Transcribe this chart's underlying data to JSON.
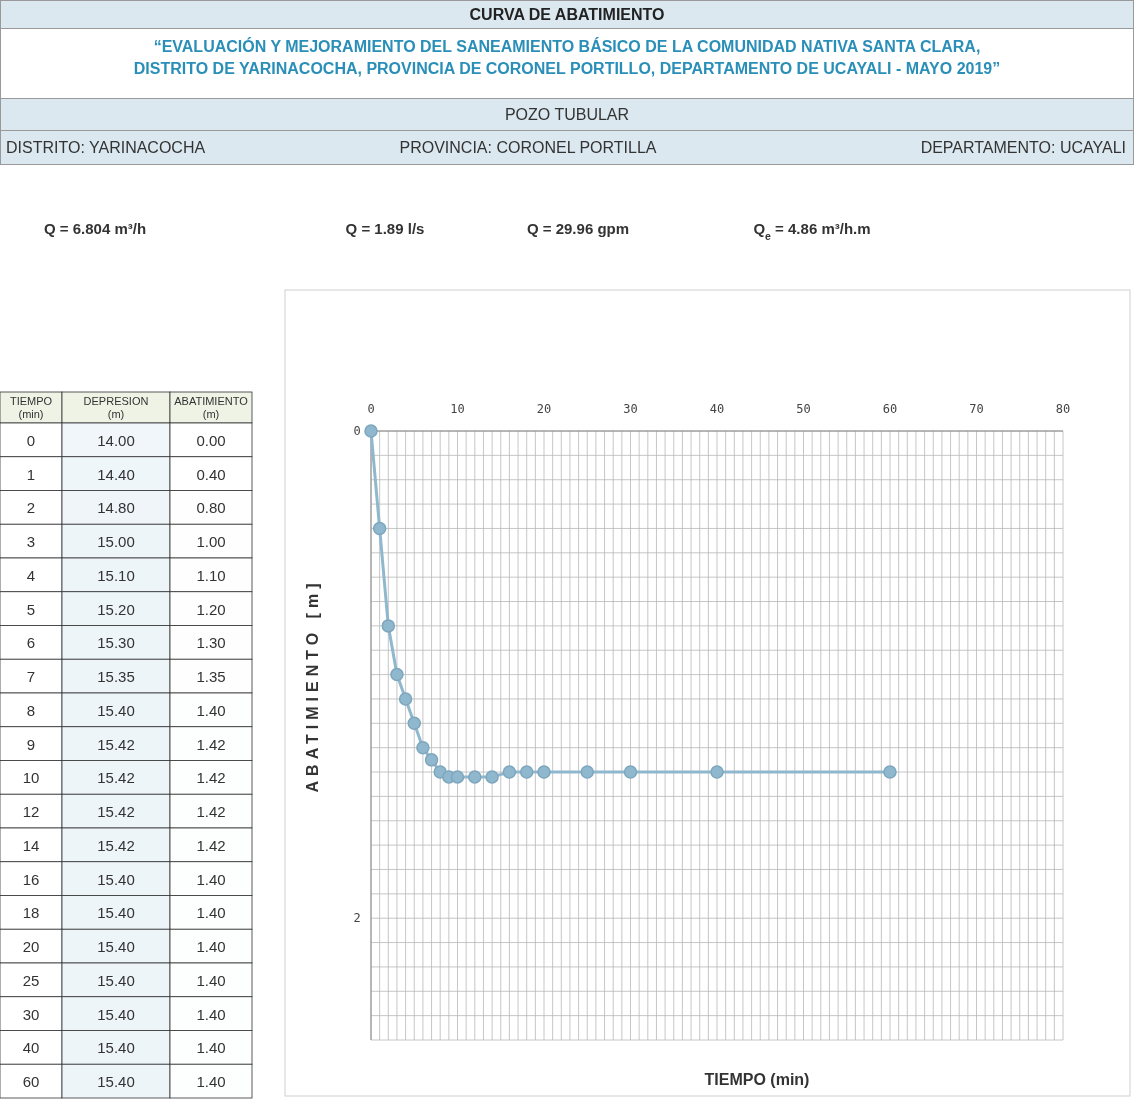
{
  "chart_data": [
    {
      "type": "heatmap",
      "ylabel": "TIEMPO (min)",
      "categories": [
        "DEPRESION (m)",
        "ABATIMIENTO (m)"
      ],
      "y_categories": [
        "0",
        "1",
        "2",
        "3",
        "4",
        "5",
        "6",
        "7",
        "8",
        "9",
        "10",
        "12",
        "14",
        "16",
        "18",
        "20",
        "25",
        "30",
        "40",
        "60"
      ],
      "cells": [
        [
          14.0,
          0.0
        ],
        [
          14.4,
          0.4
        ],
        [
          14.8,
          0.8
        ],
        [
          15.0,
          1.0
        ],
        [
          15.1,
          1.1
        ],
        [
          15.2,
          1.2
        ],
        [
          15.3,
          1.3
        ],
        [
          15.35,
          1.35
        ],
        [
          15.4,
          1.4
        ],
        [
          15.42,
          1.42
        ],
        [
          15.42,
          1.42
        ],
        [
          15.42,
          1.42
        ],
        [
          15.42,
          1.42
        ],
        [
          15.4,
          1.4
        ],
        [
          15.4,
          1.4
        ],
        [
          15.4,
          1.4
        ],
        [
          15.4,
          1.4
        ],
        [
          15.4,
          1.4
        ],
        [
          15.4,
          1.4
        ],
        [
          15.4,
          1.4
        ]
      ],
      "cell_labels": [
        [
          "14.00",
          "0.00"
        ],
        [
          "14.40",
          "0.40"
        ],
        [
          "14.80",
          "0.80"
        ],
        [
          "15.00",
          "1.00"
        ],
        [
          "15.10",
          "1.10"
        ],
        [
          "15.20",
          "1.20"
        ],
        [
          "15.30",
          "1.30"
        ],
        [
          "15.35",
          "1.35"
        ],
        [
          "15.40",
          "1.40"
        ],
        [
          "15.42",
          "1.42"
        ],
        [
          "15.42",
          "1.42"
        ],
        [
          "15.42",
          "1.42"
        ],
        [
          "15.42",
          "1.42"
        ],
        [
          "15.40",
          "1.40"
        ],
        [
          "15.40",
          "1.40"
        ],
        [
          "15.40",
          "1.40"
        ],
        [
          "15.40",
          "1.40"
        ],
        [
          "15.40",
          "1.40"
        ],
        [
          "15.40",
          "1.40"
        ],
        [
          "15.40",
          "1.40"
        ]
      ]
    },
    {
      "type": "line",
      "title": "CURVA DE ABATIMIENTO",
      "subtitle": "“EVALUACIÓN Y MEJORAMIENTO DEL SANEAMIENTO BÁSICO DE LA COMUNIDAD NATIVA SANTA CLARA, DISTRITO DE YARINACOCHA, PROVINCIA DE CORONEL PORTILLO, DEPARTAMENTO DE UCAYALI - MAYO 2019”",
      "annotations": [
        "POZO TUBULAR",
        "DISTRITO: YARINACOCHA",
        "PROVINCIA: CORONEL PORTILLA",
        "DEPARTAMENTO: UCAYALI",
        "Q =  6.804 m³/h",
        "Q = 1.89 l/s",
        "Q = 29.96 gpm",
        "Q$_{e}$ =  4.86 m³/h.m"
      ],
      "xlabel": "TIEMPO (min)",
      "ylabel": "ABATIMIENTO [m]",
      "x": [
        0,
        1,
        2,
        3,
        4,
        5,
        6,
        7,
        8,
        9,
        10,
        12,
        14,
        16,
        18,
        20,
        25,
        30,
        40,
        60
      ],
      "series": [
        {
          "color": "#8fb8cf",
          "values": [
            0,
            0.4,
            0.8,
            1.0,
            1.1,
            1.2,
            1.3,
            1.35,
            1.4,
            1.42,
            1.42,
            1.42,
            1.42,
            1.4,
            1.4,
            1.4,
            1.4,
            1.4,
            1.4,
            1.4
          ]
        }
      ],
      "xlim": [
        0,
        80
      ],
      "xticks": [
        0,
        10,
        20,
        30,
        40,
        50,
        60,
        70,
        80
      ],
      "ylim": [
        2.5,
        0
      ],
      "yticks": [
        0,
        2
      ],
      "grid": true,
      "marker": "circle",
      "line_style": "solid"
    }
  ]
}
